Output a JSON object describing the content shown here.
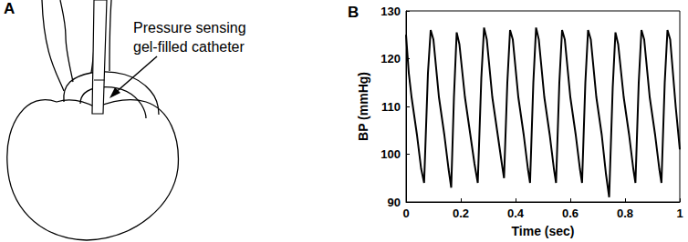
{
  "diagram": {
    "panel_label": "A",
    "annotation": [
      "Pressure sensing",
      "gel-filled catheter"
    ]
  },
  "chart_data": {
    "type": "line",
    "title": "B",
    "x_label": "Time (sec)",
    "y_label": "BP (mmHg)",
    "color": "#000000",
    "grid": false,
    "xlim": [
      0,
      1
    ],
    "xticks": [
      0,
      0.2,
      0.4,
      0.6,
      0.8,
      1
    ],
    "ylim": [
      90,
      130
    ],
    "yticks": [
      90,
      100,
      110,
      120,
      130
    ],
    "x": [
      0,
      0.01,
      0.02,
      0.04,
      0.055,
      0.066,
      0.08,
      0.09,
      0.1,
      0.12,
      0.14,
      0.155,
      0.165,
      0.175,
      0.185,
      0.195,
      0.215,
      0.235,
      0.25,
      0.262,
      0.275,
      0.285,
      0.295,
      0.315,
      0.335,
      0.35,
      0.358,
      0.37,
      0.38,
      0.39,
      0.41,
      0.43,
      0.445,
      0.453,
      0.465,
      0.475,
      0.485,
      0.505,
      0.525,
      0.54,
      0.548,
      0.56,
      0.57,
      0.58,
      0.6,
      0.62,
      0.635,
      0.643,
      0.655,
      0.665,
      0.675,
      0.695,
      0.715,
      0.73,
      0.742,
      0.755,
      0.765,
      0.775,
      0.795,
      0.815,
      0.83,
      0.838,
      0.85,
      0.86,
      0.87,
      0.89,
      0.91,
      0.925,
      0.933,
      0.945,
      0.955,
      0.965,
      0.985,
      1.0
    ],
    "values": [
      125,
      117,
      112,
      104,
      97,
      94,
      117,
      126,
      124,
      112,
      104,
      97,
      93,
      112,
      125.5,
      123,
      112,
      104,
      98,
      94,
      116,
      126.5,
      124,
      112,
      104,
      98,
      95,
      115,
      126,
      124,
      112,
      104,
      97,
      94,
      115,
      126.5,
      124,
      112,
      104,
      97,
      94,
      115,
      126,
      124,
      112,
      104,
      97,
      94,
      115,
      126,
      124,
      112,
      104,
      96,
      91,
      114,
      125.5,
      123,
      112,
      104,
      97,
      94,
      115,
      126,
      124,
      112,
      104,
      97,
      94,
      115,
      126,
      124,
      110,
      101
    ]
  }
}
